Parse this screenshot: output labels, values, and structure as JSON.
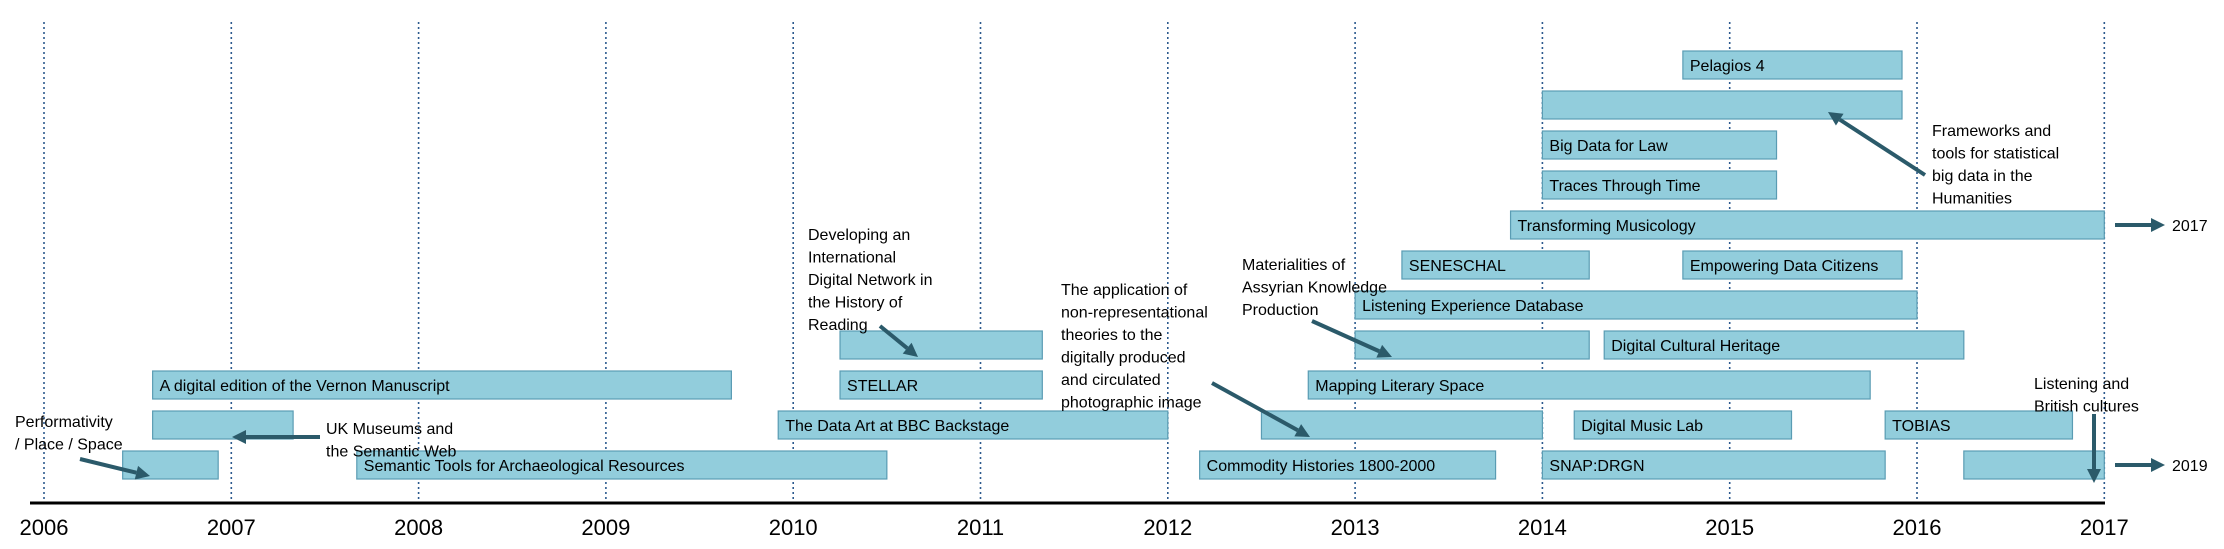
{
  "chart_data": {
    "type": "gantt",
    "x_ticks": [
      2006,
      2007,
      2008,
      2009,
      2010,
      2011,
      2012,
      2013,
      2014,
      2015,
      2016,
      2017
    ],
    "xlim": [
      2006,
      2017.6
    ],
    "grid": true,
    "bars": [
      {
        "label": "",
        "start": 2006.42,
        "end": 2006.93,
        "row": 0
      },
      {
        "label": "Semantic Tools for Archaeological Resources",
        "start": 2007.67,
        "end": 2010.5,
        "row": 0
      },
      {
        "label": "Commodity Histories 1800-2000",
        "start": 2012.17,
        "end": 2013.75,
        "row": 0
      },
      {
        "label": "SNAP:DRGN",
        "start": 2014.0,
        "end": 2015.83,
        "row": 0
      },
      {
        "label": "",
        "start": 2016.25,
        "end": 2017.0,
        "row": 0,
        "continues_to": "2019"
      },
      {
        "label": "",
        "start": 2006.58,
        "end": 2007.33,
        "row": 1
      },
      {
        "label": "The Data Art at BBC Backstage",
        "start": 2009.92,
        "end": 2012.0,
        "row": 1
      },
      {
        "label": "",
        "start": 2012.5,
        "end": 2014.0,
        "row": 1
      },
      {
        "label": "Digital Music Lab",
        "start": 2014.17,
        "end": 2015.33,
        "row": 1
      },
      {
        "label": "TOBIAS",
        "start": 2015.83,
        "end": 2016.83,
        "row": 1
      },
      {
        "label": "A digital edition of the Vernon Manuscript",
        "start": 2006.58,
        "end": 2009.67,
        "row": 2
      },
      {
        "label": "STELLAR",
        "start": 2010.25,
        "end": 2011.33,
        "row": 2
      },
      {
        "label": "Mapping Literary Space",
        "start": 2012.75,
        "end": 2015.75,
        "row": 2
      },
      {
        "label": "",
        "start": 2010.25,
        "end": 2011.33,
        "row": 3
      },
      {
        "label": "",
        "start": 2013.0,
        "end": 2014.25,
        "row": 3
      },
      {
        "label": "Digital Cultural Heritage",
        "start": 2014.33,
        "end": 2016.25,
        "row": 3
      },
      {
        "label": "Listening Experience Database",
        "start": 2013.0,
        "end": 2016.0,
        "row": 4
      },
      {
        "label": "SENESCHAL",
        "start": 2013.25,
        "end": 2014.25,
        "row": 5
      },
      {
        "label": "Empowering Data Citizens",
        "start": 2014.75,
        "end": 2015.92,
        "row": 5
      },
      {
        "label": "Transforming Musicology",
        "start": 2013.83,
        "end": 2017.0,
        "row": 6,
        "continues_to": "2017"
      },
      {
        "label": "Traces Through Time",
        "start": 2014.0,
        "end": 2015.25,
        "row": 7
      },
      {
        "label": "Big Data for Law",
        "start": 2014.0,
        "end": 2015.25,
        "row": 8
      },
      {
        "label": "",
        "start": 2014.0,
        "end": 2015.92,
        "row": 9
      },
      {
        "label": "Pelagios 4",
        "start": 2014.75,
        "end": 2015.92,
        "row": 10
      }
    ],
    "continuation_labels": [
      "2017",
      "2019"
    ],
    "annotations": [
      {
        "text": [
          "Performativity",
          "/ Place / Space"
        ]
      },
      {
        "text": [
          "UK Museums and",
          "the Semantic Web"
        ]
      },
      {
        "text": [
          "Developing an",
          "International",
          "Digital Network in",
          "the History of",
          "Reading"
        ]
      },
      {
        "text": [
          "The application of",
          "non-representational",
          "theories to the",
          "digitally produced",
          "and circulated",
          "photographic image"
        ]
      },
      {
        "text": [
          "Materialities of",
          "Assyrian Knowledge",
          "Production"
        ]
      },
      {
        "text": [
          "Frameworks and",
          "tools for statistical",
          "big data in the",
          "Humanities"
        ]
      },
      {
        "text": [
          "Listening and",
          "British cultures"
        ]
      }
    ]
  },
  "colors": {
    "bar": "#92cddc",
    "bar_border": "#5a9cb3",
    "arrow": "#2b5a6a",
    "grid": "#2c5a8e"
  }
}
